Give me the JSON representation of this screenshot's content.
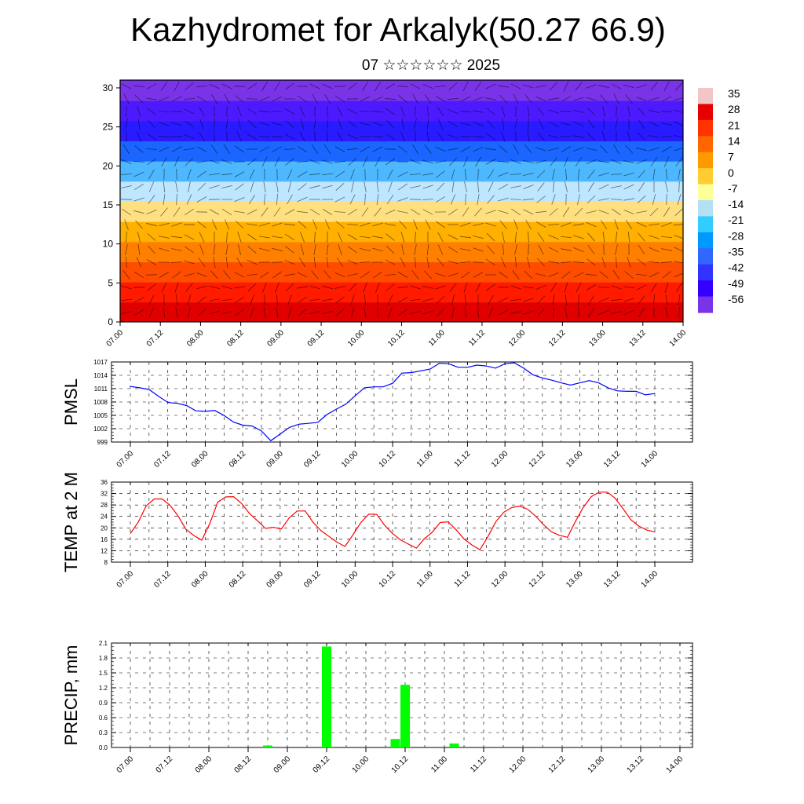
{
  "header": {
    "title": "Kazhydromet for Arkalyk(50.27 66.9)",
    "subtitle": "07 ☆☆☆☆☆☆ 2025"
  },
  "chart_data": [
    {
      "type": "heatmap",
      "title": "Kazhydromet for Arkalyk(50.27 66.9)",
      "subtitle": "07 ☆☆☆☆☆☆ 2025",
      "xticks": [
        "07.00",
        "07.12",
        "08.00",
        "08.12",
        "09.00",
        "09.12",
        "10.00",
        "10.12",
        "11.00",
        "11.12",
        "12.00",
        "12.12",
        "13.00",
        "13.12",
        "14.00"
      ],
      "yticks": [
        "0",
        "5",
        "10",
        "15",
        "20",
        "25",
        "30"
      ],
      "ylim": [
        0,
        31
      ],
      "colorbar": {
        "labels": [
          "35",
          "28",
          "21",
          "14",
          "7",
          "0",
          "-7",
          "-14",
          "-21",
          "-28",
          "-35",
          "-42",
          "-49",
          "-56"
        ],
        "colors": [
          "#f2c6c6",
          "#e60000",
          "#ff3300",
          "#ff6600",
          "#ff9900",
          "#ffcc33",
          "#ffff99",
          "#b3e0f2",
          "#33ccff",
          "#0099ff",
          "#3366ff",
          "#3333ff",
          "#3300ff",
          "#7a33e6"
        ]
      },
      "field": "temperature with overlaid wind barbs",
      "level_colors": [
        "#e00000",
        "#ff1a00",
        "#ff4d00",
        "#ff8000",
        "#ffb000",
        "#ffe080",
        "#bfe6ff",
        "#4db8ff",
        "#1a66ff",
        "#2a1aff",
        "#4d1aff",
        "#7a33e6"
      ]
    },
    {
      "type": "line",
      "ylabel": "PMSL",
      "xticks": [
        "07.00",
        "07.12",
        "08.00",
        "08.12",
        "09.00",
        "09.12",
        "10.00",
        "10.12",
        "11.00",
        "11.12",
        "12.00",
        "12.12",
        "13.00",
        "13.12",
        "14.00"
      ],
      "yticks": [
        "999",
        "1002",
        "1005",
        "1008",
        "1011",
        "1014",
        "1017"
      ],
      "ylim": [
        999,
        1017
      ],
      "color": "#0000ff",
      "y": [
        1011.5,
        1011.2,
        1010.8,
        1009.3,
        1007.9,
        1007.7,
        1007.2,
        1006.0,
        1005.9,
        1006.1,
        1005.0,
        1003.5,
        1002.8,
        1002.6,
        1001.5,
        999.3,
        1000.8,
        1002.3,
        1003.0,
        1003.2,
        1003.4,
        1005.2,
        1006.4,
        1007.5,
        1009.4,
        1011.2,
        1011.4,
        1011.4,
        1012.2,
        1014.5,
        1014.6,
        1015.0,
        1015.4,
        1016.7,
        1016.6,
        1015.8,
        1015.8,
        1016.3,
        1016.1,
        1015.6,
        1016.6,
        1016.8,
        1015.6,
        1014.1,
        1013.4,
        1012.9,
        1012.3,
        1011.8,
        1012.3,
        1012.8,
        1012.3,
        1011.2,
        1010.5,
        1010.4,
        1010.4,
        1009.6,
        1009.9
      ]
    },
    {
      "type": "line",
      "ylabel": "TEMP at 2 M",
      "xticks": [
        "07.00",
        "07.12",
        "08.00",
        "08.12",
        "09.00",
        "09.12",
        "10.00",
        "10.12",
        "11.00",
        "11.12",
        "12.00",
        "12.12",
        "13.00",
        "13.12",
        "14.00"
      ],
      "yticks": [
        "8",
        "12",
        "16",
        "20",
        "24",
        "28",
        "32",
        "36"
      ],
      "ylim": [
        8,
        36
      ],
      "color": "#ff0000",
      "y": [
        18.0,
        22.0,
        27.7,
        30.1,
        30.1,
        27.9,
        24.2,
        19.5,
        17.3,
        15.7,
        21.5,
        29.0,
        30.8,
        30.9,
        28.5,
        25.0,
        22.5,
        19.8,
        20.2,
        19.6,
        23.5,
        25.9,
        25.9,
        21.9,
        19.0,
        17.0,
        15.0,
        13.5,
        17.5,
        21.8,
        24.8,
        24.7,
        20.9,
        18.0,
        15.8,
        14.3,
        12.9,
        16.2,
        18.5,
        21.9,
        22.1,
        19.3,
        16.1,
        14.0,
        12.3,
        17.0,
        22.2,
        25.5,
        27.1,
        27.6,
        26.5,
        24.1,
        21.1,
        18.6,
        17.4,
        16.7,
        22.2,
        27.2,
        30.9,
        32.5,
        32.5,
        30.4,
        26.7,
        22.8,
        20.6,
        19.2,
        18.6
      ]
    },
    {
      "type": "bar",
      "ylabel": "PRECIP, mm",
      "xticks": [
        "07.00",
        "07.12",
        "08.00",
        "08.12",
        "09.00",
        "09.12",
        "10.00",
        "10.12",
        "11.00",
        "11.12",
        "12.00",
        "12.12",
        "13.00",
        "13.12",
        "14.00"
      ],
      "yticks": [
        "0.0",
        "0.3",
        "0.6",
        "0.9",
        "1.2",
        "1.5",
        "1.8",
        "2.1"
      ],
      "ylim": [
        0,
        2.1
      ],
      "color": "#00ff00",
      "bars": [
        {
          "x": 8.75,
          "value": 0.04
        },
        {
          "x": 9.5,
          "value": 2.03
        },
        {
          "x": 10.375,
          "value": 0.17
        },
        {
          "x": 10.5,
          "value": 1.26
        },
        {
          "x": 11.125,
          "value": 0.08
        }
      ]
    }
  ]
}
